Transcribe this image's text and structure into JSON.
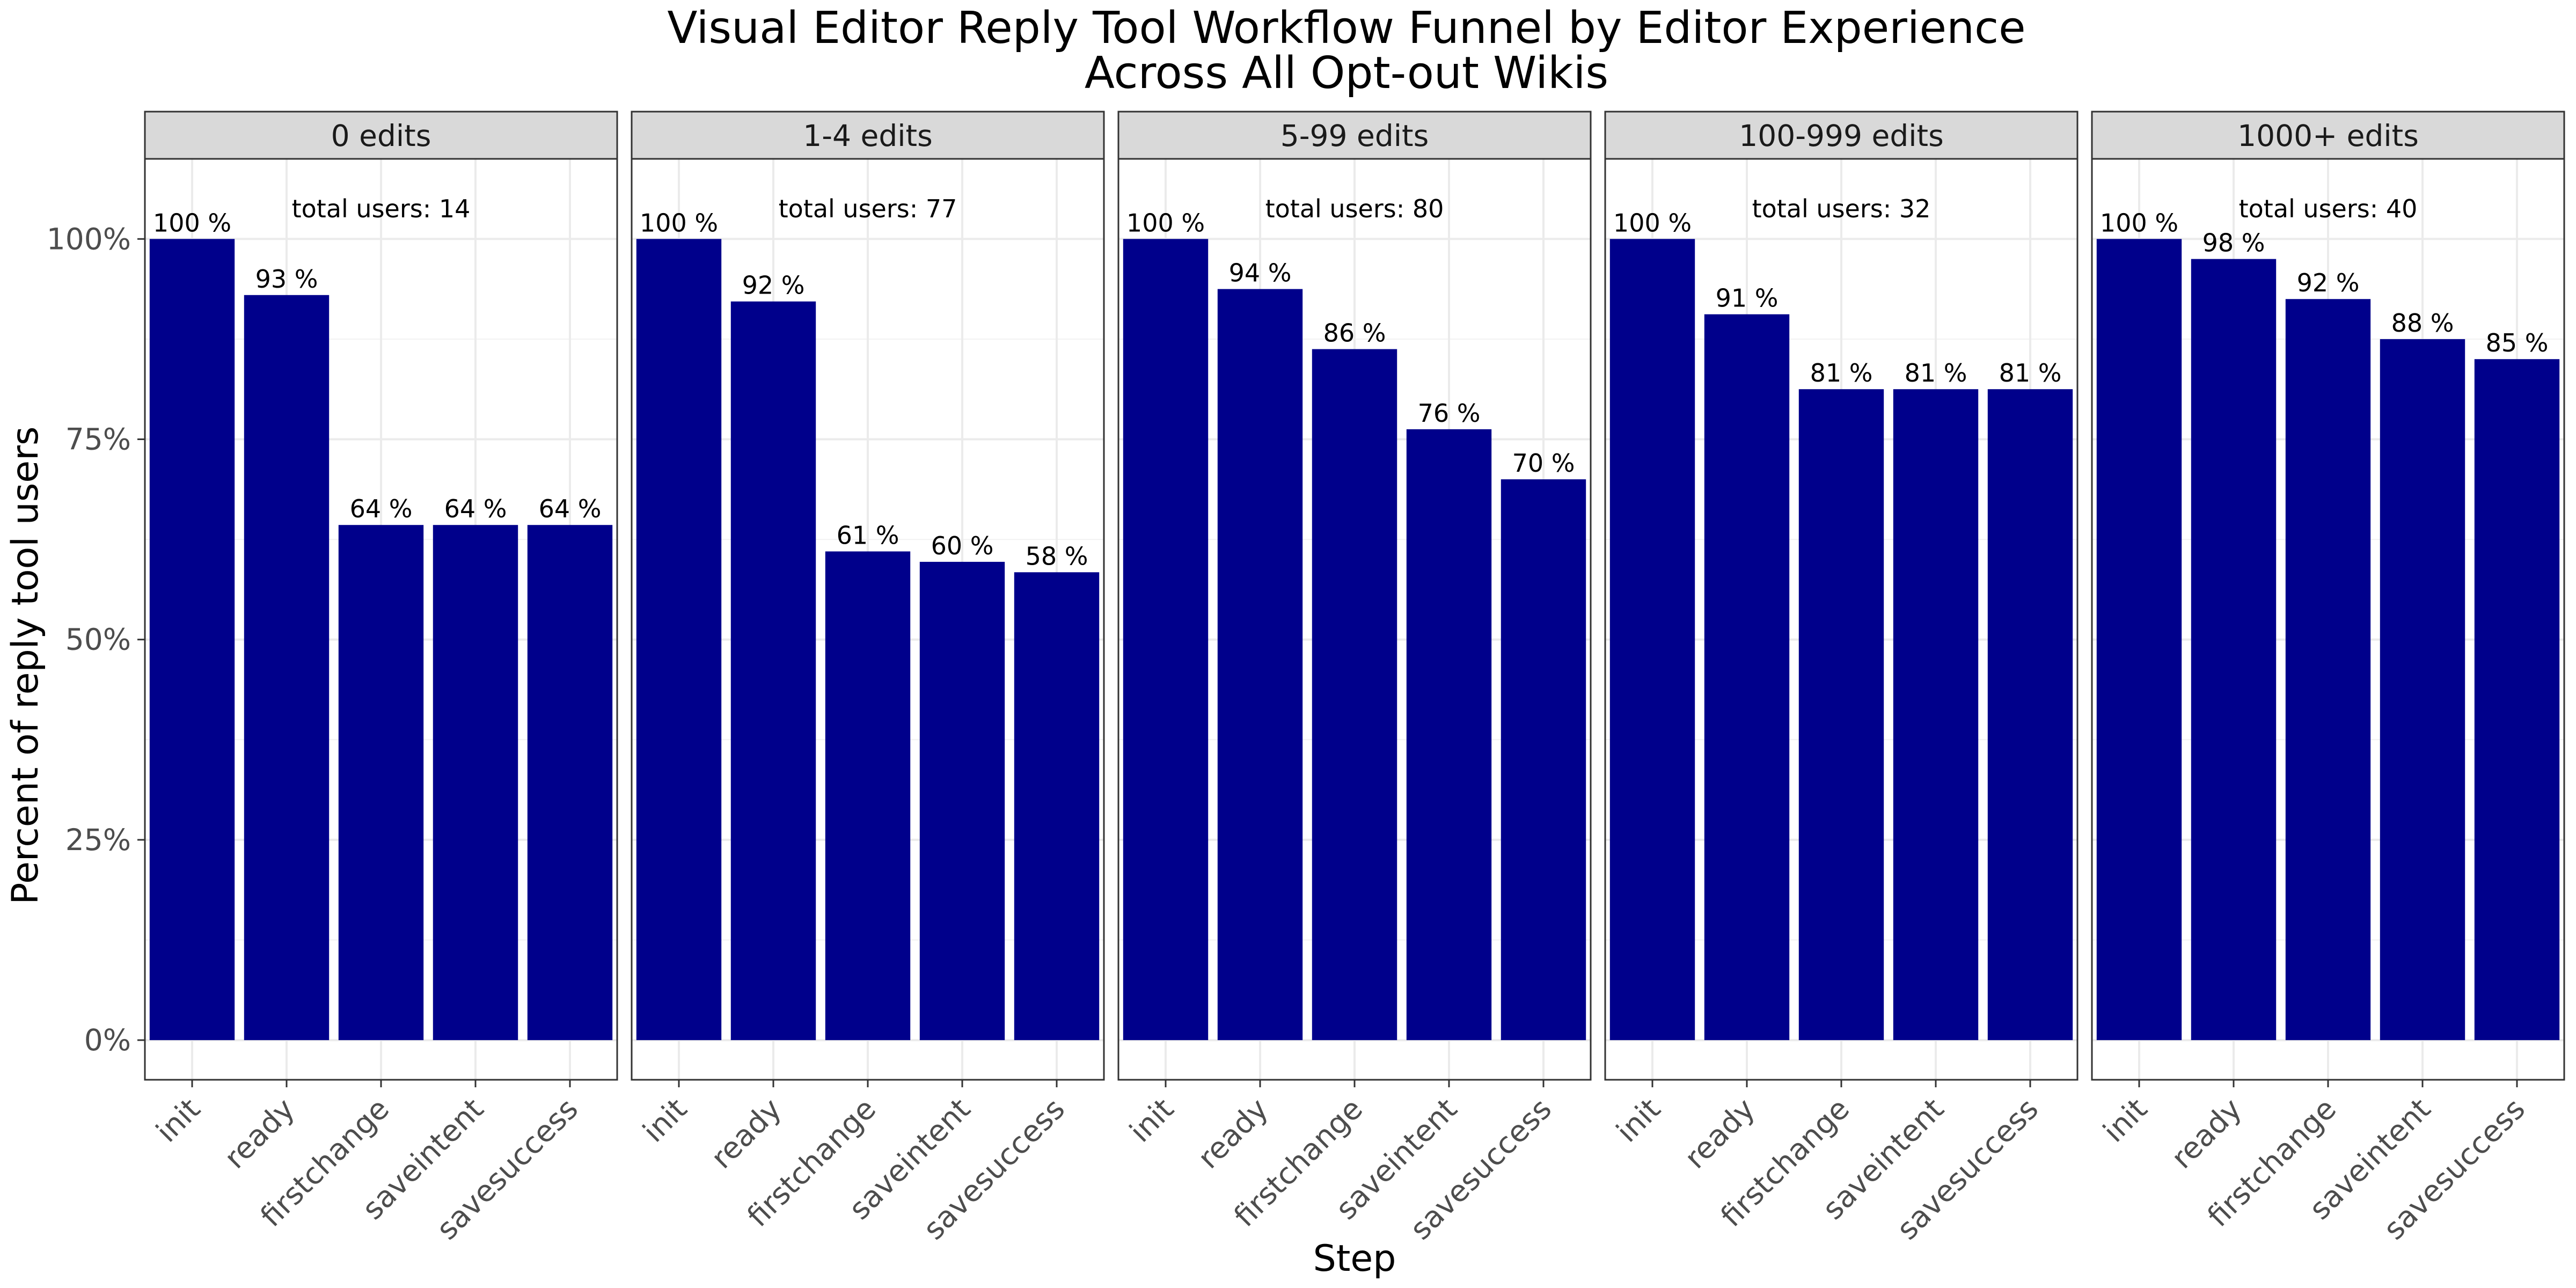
{
  "chart_data": {
    "type": "bar",
    "title_lines": [
      "Visual Editor Reply Tool Workflow Funnel by Editor Experience",
      "Across All Opt-out Wikis"
    ],
    "xlabel": "Step",
    "ylabel": "Percent of reply tool users",
    "ylim": [
      0,
      1.1
    ],
    "y_ticks": [
      {
        "value": 0,
        "label": "0%"
      },
      {
        "value": 0.25,
        "label": "25%"
      },
      {
        "value": 0.5,
        "label": "50%"
      },
      {
        "value": 0.75,
        "label": "75%"
      },
      {
        "value": 1,
        "label": "100%"
      }
    ],
    "categories": [
      "init",
      "ready",
      "firstchange",
      "saveintent",
      "savesuccess"
    ],
    "grid": true,
    "bar_color": "#00008B",
    "facets": [
      {
        "name": "0 edits",
        "total_label": "total users: 14",
        "values": [
          1.0,
          0.93,
          0.643,
          0.643,
          0.643
        ],
        "labels": [
          "100 %",
          "93 %",
          "64 %",
          "64 %",
          "64 %"
        ]
      },
      {
        "name": "1-4 edits",
        "total_label": "total users: 77",
        "values": [
          1.0,
          0.922,
          0.61,
          0.597,
          0.584
        ],
        "labels": [
          "100 %",
          "92 %",
          "61 %",
          "60 %",
          "58 %"
        ]
      },
      {
        "name": "5-99 edits",
        "total_label": "total users: 80",
        "values": [
          1.0,
          0.9375,
          0.8625,
          0.7625,
          0.7
        ],
        "labels": [
          "100 %",
          "94 %",
          "86 %",
          "76 %",
          "70 %"
        ]
      },
      {
        "name": "100-999 edits",
        "total_label": "total users: 32",
        "values": [
          1.0,
          0.906,
          0.8125,
          0.8125,
          0.8125
        ],
        "labels": [
          "100 %",
          "91 %",
          "81 %",
          "81 %",
          "81 %"
        ]
      },
      {
        "name": "1000+ edits",
        "total_label": "total users: 40",
        "values": [
          1.0,
          0.975,
          0.925,
          0.875,
          0.85
        ],
        "labels": [
          "100 %",
          "98 %",
          "92 %",
          "88 %",
          "85 %"
        ]
      }
    ]
  }
}
